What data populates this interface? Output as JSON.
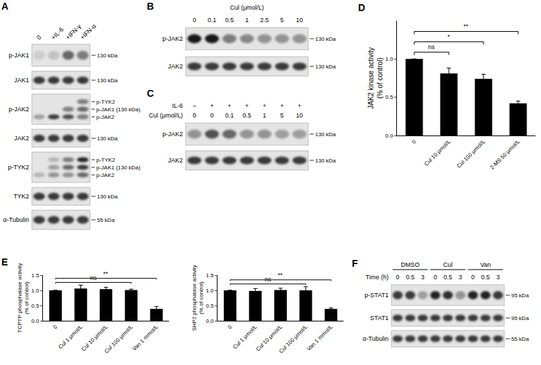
{
  "chart_data": [
    {
      "panel": "D",
      "type": "bar",
      "ylabel": [
        "JAK2 kinase activity",
        "(% of control)"
      ],
      "categories": [
        "0",
        "Cul 10 μmol/L",
        "Cul 100 μmol/L",
        "2-MS 50 μmol/L"
      ],
      "values": [
        1.0,
        0.81,
        0.74,
        0.42
      ],
      "errors": [
        0,
        0.07,
        0.06,
        0.03
      ],
      "color": "#000000",
      "ylim": [
        0,
        1.5
      ],
      "yticks": [
        {
          "value": 0,
          "label": "0.0"
        },
        0.5,
        {
          "value": 1,
          "label": "1.0"
        }
      ],
      "grid": false,
      "significance": [
        {
          "text": "ns",
          "from": "0",
          "to": "Cul 10 μmol/L"
        },
        {
          "text": "*",
          "from": "0",
          "to": "Cul 100 μmol/L"
        },
        {
          "text": "**",
          "from": "0",
          "to": "2-MS 50 μmol/L"
        }
      ]
    },
    {
      "panel": "E",
      "type": "bar",
      "ylabel": [
        "TCPTP phosphatase activity",
        "(% of control)"
      ],
      "categories": [
        "0",
        "Cul 1 μmol/L",
        "Cul 10 μmol/L",
        "Cul 100 μmol/L",
        "Van 1 mmol/L"
      ],
      "values": [
        1.0,
        1.06,
        1.04,
        1.01,
        0.39
      ],
      "errors": [
        0,
        0.11,
        0.06,
        0.03,
        0.08
      ],
      "color": "#000000",
      "ylim": [
        0,
        1.5
      ],
      "yticks": [
        {
          "value": 0,
          "label": "0.0"
        },
        0.5,
        {
          "value": 1,
          "label": "1.0"
        },
        1.5
      ],
      "grid": false,
      "significance": [
        {
          "text": "ns",
          "from": "0",
          "to": "Cul 100 μmol/L"
        },
        {
          "text": "**",
          "from": "0",
          "to": "Van 1 mmol/L"
        }
      ]
    },
    {
      "type": "bar",
      "ylabel": [
        "SHP2 phosphatase activity",
        "(% of control)"
      ],
      "categories": [
        "0",
        "Cul 1 μmol/L",
        "Cul 10 μmol/L",
        "Cul 100 μmol/L",
        "Van 1 mmol/L"
      ],
      "values": [
        1.0,
        0.98,
        1.01,
        1.0,
        0.39
      ],
      "errors": [
        0,
        0.08,
        0.06,
        0.12,
        0.03
      ],
      "color": "#000000",
      "ylim": [
        0,
        1.5
      ],
      "yticks": [
        {
          "value": 0,
          "label": "0.0"
        },
        0.5,
        {
          "value": 1,
          "label": "1.0"
        },
        1.5
      ],
      "grid": false,
      "significance": [
        {
          "text": "ns",
          "from": "0",
          "to": "Cul 100 μmol/L"
        },
        {
          "text": "**",
          "from": "0",
          "to": "Van 1 mmol/L"
        }
      ]
    }
  ],
  "blots": [
    {
      "panel": "A",
      "lanes": [
        "0",
        "+IL-6",
        "+IFN-γ",
        "+IFN-α"
      ],
      "rows": [
        {
          "label": "p-JAK1",
          "kda": "130 kDa",
          "bands": [
            [
              0.1,
              0.15,
              0.6,
              0.5
            ]
          ]
        },
        {
          "label": "JAK1",
          "kda": "130 kDa",
          "bands": [
            [
              0.8,
              0.8,
              0.8,
              0.8
            ]
          ]
        },
        {
          "label": "p-JAK2",
          "band_labels": [
            "p-TYK2",
            "p-JAK1 (130 kDa)",
            "p-JAK2"
          ],
          "bands": [
            [
              0,
              0,
              0,
              0.5
            ],
            [
              0,
              0,
              0.5,
              0.6
            ],
            [
              0.3,
              0.8,
              0.7,
              0.5
            ]
          ]
        },
        {
          "label": "JAK2",
          "kda": "130 kDa",
          "bands": [
            [
              0.8,
              0.8,
              0.8,
              0.8
            ]
          ]
        },
        {
          "label": "p-TYK2",
          "band_labels": [
            "p-TYK2",
            "p-JAK1 (130 kDa)",
            "p-JAK2"
          ],
          "bands": [
            [
              0,
              0.2,
              0.5,
              0.9
            ],
            [
              0,
              0.3,
              0.6,
              0.8
            ],
            [
              0.2,
              0.4,
              0.4,
              0.6
            ]
          ]
        },
        {
          "label": "TYK2",
          "kda": "130 kDa",
          "bands": [
            [
              0.8,
              0.8,
              0.8,
              0.8
            ]
          ]
        },
        {
          "label": "α-Tubulin",
          "kda": "55 kDa",
          "bands": [
            [
              0.8,
              0.8,
              0.8,
              0.8
            ]
          ]
        }
      ]
    },
    {
      "panel": "B",
      "header": "Cul (μmol/L)",
      "lanes": [
        "0",
        "0.1",
        "0.5",
        "1",
        "2.5",
        "5",
        "10"
      ],
      "rows": [
        {
          "label": "p-JAK2",
          "kda": "130 kDa",
          "bands": [
            [
              0.95,
              0.95,
              0.5,
              0.45,
              0.4,
              0.4,
              0.4
            ]
          ]
        },
        {
          "label": "JAK2",
          "kda": "130 kDa",
          "bands": [
            [
              0.8,
              0.8,
              0.8,
              0.8,
              0.8,
              0.8,
              0.8
            ]
          ]
        }
      ]
    },
    {
      "panel": "C",
      "conditions": [
        {
          "label": "IL-6",
          "values": [
            "–",
            "+",
            "+",
            "+",
            "+",
            "+",
            "+"
          ]
        },
        {
          "label": "Cul (μmol/L)",
          "values": [
            "0",
            "0",
            "0.1",
            "0.5",
            "1",
            "5",
            "10"
          ]
        }
      ],
      "rows": [
        {
          "label": "p-JAK2",
          "kda": "130 kDa",
          "bands": [
            [
              0.4,
              0.7,
              0.6,
              0.4,
              0.4,
              0.35,
              0.35
            ]
          ]
        },
        {
          "label": "JAK2",
          "kda": "130 kDa",
          "bands": [
            [
              0.8,
              0.8,
              0.8,
              0.8,
              0.8,
              0.8,
              0.8
            ]
          ]
        }
      ]
    },
    {
      "panel": "F",
      "lane_row_label": "Time (h)",
      "groups": [
        {
          "label": "DMSO",
          "lanes": [
            "0",
            "0.5",
            "3"
          ]
        },
        {
          "label": "Cul",
          "lanes": [
            "0",
            "0.5",
            "3"
          ]
        },
        {
          "label": "Van",
          "lanes": [
            "0",
            "0.5",
            "3"
          ]
        }
      ],
      "rows": [
        {
          "label": "p-STAT1",
          "kda": "95 kDa",
          "bands": [
            [
              0.8,
              0.8,
              0.3,
              0.9,
              0.85,
              0.4,
              0.9,
              0.9,
              0.8
            ]
          ]
        },
        {
          "label": "STAT1",
          "kda": "95 kDa",
          "bands": [
            [
              0.8,
              0.8,
              0.8,
              0.8,
              0.8,
              0.8,
              0.8,
              0.8,
              0.8
            ]
          ]
        },
        {
          "label": "α-Tubulin",
          "kda": "55 kDa",
          "bands": [
            [
              0.8,
              0.8,
              0.8,
              0.8,
              0.8,
              0.8,
              0.8,
              0.8,
              0.8
            ]
          ]
        }
      ]
    }
  ]
}
